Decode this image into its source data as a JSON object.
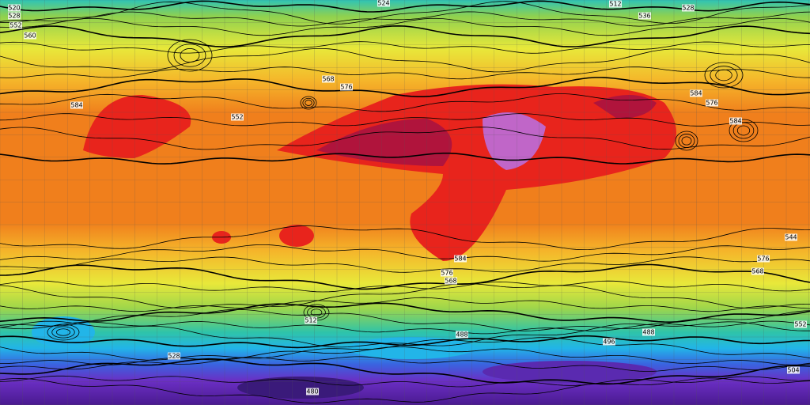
{
  "map": {
    "contour_labels": [
      520,
      528,
      552,
      560,
      524,
      512,
      528,
      536,
      568,
      576,
      584,
      552,
      584,
      576,
      584,
      576,
      568,
      584,
      576,
      568,
      512,
      488,
      496,
      488,
      480,
      528,
      504,
      544,
      552
    ]
  }
}
